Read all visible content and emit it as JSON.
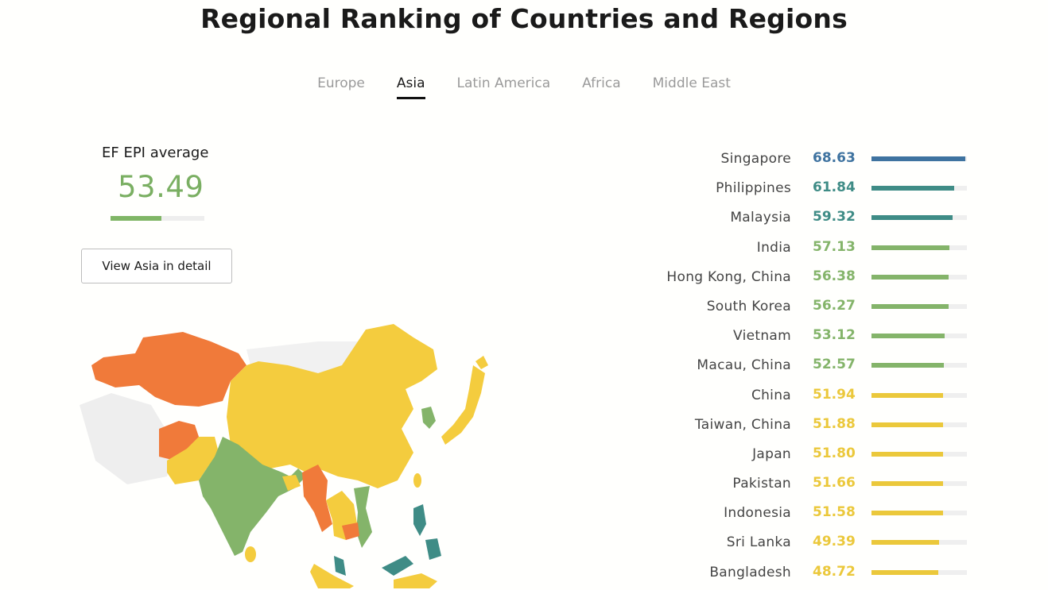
{
  "title": "Regional Ranking of Countries and Regions",
  "tabs": [
    {
      "label": "Europe",
      "active": false
    },
    {
      "label": "Asia",
      "active": true
    },
    {
      "label": "Latin America",
      "active": false
    },
    {
      "label": "Africa",
      "active": false
    },
    {
      "label": "Middle East",
      "active": false
    }
  ],
  "average": {
    "label": "EF EPI average",
    "value": "53.49",
    "level": 0.54,
    "color": "#7aaf62"
  },
  "detail_button": "View Asia in detail",
  "colors": {
    "very_high": "#3f73a0",
    "high": "#3f8c86",
    "moderate": "#84b46a",
    "low": "#ebc83b",
    "very_low": "#f07a3a"
  },
  "ranking": [
    {
      "country": "Singapore",
      "score": "68.63",
      "level": 0.98,
      "color": "#3f73a0"
    },
    {
      "country": "Philippines",
      "score": "61.84",
      "level": 0.87,
      "color": "#3f8c86"
    },
    {
      "country": "Malaysia",
      "score": "59.32",
      "level": 0.85,
      "color": "#3f8c86"
    },
    {
      "country": "India",
      "score": "57.13",
      "level": 0.82,
      "color": "#84b46a"
    },
    {
      "country": "Hong Kong, China",
      "score": "56.38",
      "level": 0.81,
      "color": "#84b46a"
    },
    {
      "country": "South Korea",
      "score": "56.27",
      "level": 0.81,
      "color": "#84b46a"
    },
    {
      "country": "Vietnam",
      "score": "53.12",
      "level": 0.77,
      "color": "#84b46a"
    },
    {
      "country": "Macau, China",
      "score": "52.57",
      "level": 0.76,
      "color": "#84b46a"
    },
    {
      "country": "China",
      "score": "51.94",
      "level": 0.75,
      "color": "#ebc83b"
    },
    {
      "country": "Taiwan, China",
      "score": "51.88",
      "level": 0.75,
      "color": "#ebc83b"
    },
    {
      "country": "Japan",
      "score": "51.80",
      "level": 0.75,
      "color": "#ebc83b"
    },
    {
      "country": "Pakistan",
      "score": "51.66",
      "level": 0.75,
      "color": "#ebc83b"
    },
    {
      "country": "Indonesia",
      "score": "51.58",
      "level": 0.75,
      "color": "#ebc83b"
    },
    {
      "country": "Sri Lanka",
      "score": "49.39",
      "level": 0.71,
      "color": "#ebc83b"
    },
    {
      "country": "Bangladesh",
      "score": "48.72",
      "level": 0.7,
      "color": "#ebc83b"
    }
  ]
}
